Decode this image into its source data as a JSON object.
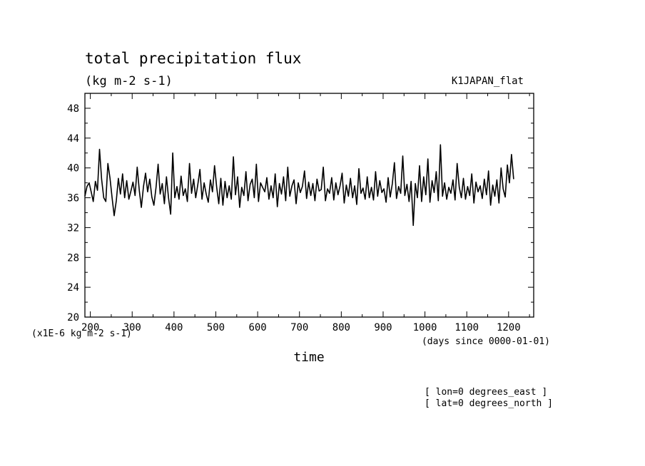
{
  "chart_data": {
    "type": "line",
    "title": "total precipitation flux",
    "subtitle": "(kg m-2 s-1)",
    "dataset_label": "K1JAPAN_flat",
    "xlabel": "time",
    "x_units": "(days since 0000-01-01)",
    "y_scale_label": "(x1E-6 kg m-2 s-1)",
    "xlim": [
      187,
      1260
    ],
    "ylim": [
      20,
      50
    ],
    "x_ticks": [
      200,
      300,
      400,
      500,
      600,
      700,
      800,
      900,
      1000,
      1100,
      1200
    ],
    "y_ticks": [
      20,
      24,
      28,
      32,
      36,
      40,
      44,
      48
    ],
    "grid": false,
    "annotations": [
      "[ lon=0 degrees_east ]",
      "[ lat=0 degrees_north ]"
    ],
    "series": [
      {
        "x_start": 187,
        "x_step": 5,
        "values": [
          36.2,
          37.5,
          38.0,
          36.8,
          35.5,
          38.2,
          37.0,
          42.5,
          38.5,
          36.0,
          35.5,
          40.6,
          38.6,
          36.0,
          33.6,
          35.6,
          38.6,
          36.5,
          39.2,
          36.0,
          38.3,
          35.8,
          36.9,
          38.1,
          36.3,
          40.1,
          37.0,
          34.7,
          37.5,
          39.3,
          36.8,
          38.5,
          36.1,
          35.0,
          37.4,
          40.5,
          36.5,
          37.9,
          35.2,
          38.8,
          36.0,
          33.8,
          42.0,
          36.0,
          37.5,
          35.8,
          38.9,
          36.3,
          37.2,
          35.5,
          40.6,
          36.6,
          38.5,
          36.0,
          37.8,
          39.8,
          35.8,
          38.0,
          36.5,
          35.4,
          38.4,
          36.8,
          40.3,
          37.4,
          35.2,
          38.6,
          35.0,
          38.2,
          36.0,
          37.6,
          35.8,
          41.5,
          36.4,
          38.8,
          34.7,
          37.4,
          36.3,
          39.5,
          35.6,
          37.8,
          38.5,
          36.0,
          40.5,
          35.5,
          38.0,
          37.4,
          36.8,
          38.7,
          35.8,
          37.6,
          36.0,
          39.2,
          34.8,
          37.9,
          36.5,
          38.8,
          35.6,
          40.1,
          36.2,
          37.6,
          38.4,
          35.2,
          38.0,
          36.7,
          37.5,
          39.6,
          35.9,
          38.1,
          36.3,
          37.9,
          35.6,
          38.5,
          36.9,
          37.1,
          40.1,
          35.6,
          37.2,
          36.6,
          38.7,
          35.7,
          38.0,
          36.4,
          37.6,
          39.3,
          35.3,
          37.7,
          36.2,
          38.6,
          36.0,
          37.6,
          35.1,
          39.9,
          36.6,
          37.3,
          35.8,
          38.8,
          36.0,
          37.4,
          35.7,
          39.5,
          36.2,
          38.3,
          36.7,
          37.2,
          35.4,
          38.7,
          36.1,
          37.9,
          40.7,
          35.9,
          37.5,
          36.6,
          41.6,
          36.3,
          37.8,
          35.5,
          38.2,
          32.3,
          37.9,
          36.0,
          40.3,
          35.5,
          38.8,
          36.4,
          41.2,
          35.4,
          38.3,
          36.7,
          39.5,
          35.6,
          43.1,
          36.2,
          38.0,
          35.8,
          37.4,
          36.6,
          38.4,
          35.7,
          40.6,
          37.4,
          36.0,
          38.6,
          35.8,
          37.5,
          36.3,
          39.2,
          35.3,
          38.1,
          36.8,
          37.6,
          35.9,
          38.5,
          36.4,
          39.6,
          35.0,
          37.7,
          36.2,
          38.4,
          35.3,
          40.0,
          37.2,
          36.1,
          40.4,
          38.0,
          41.8,
          38.5
        ]
      }
    ]
  }
}
